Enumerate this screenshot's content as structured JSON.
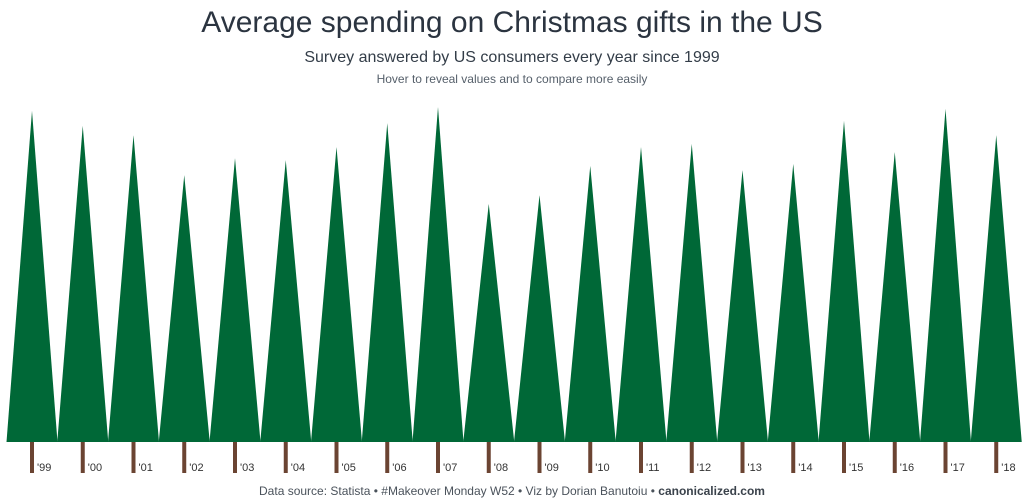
{
  "header": {
    "title": "Average spending on Christmas gifts in the US",
    "subtitle": "Survey answered by US consumers every year since 1999",
    "hint": "Hover to reveal values and to compare more easily"
  },
  "footer": {
    "text": "Data source: Statista • #Makeover Monday W52 • Viz by Dorian Banutoiu • ",
    "brand": "canonicalized.com"
  },
  "colors": {
    "tree": "#006837",
    "trunk": "#6b4432"
  },
  "chart_data": {
    "type": "bar",
    "mark": "triangle-tree",
    "title": "Average spending on Christmas gifts in the US",
    "categories": [
      "'99",
      "'00",
      "'01",
      "'02",
      "'03",
      "'04",
      "'05",
      "'06",
      "'07",
      "'08",
      "'09",
      "'10",
      "'11",
      "'12",
      "'13",
      "'14",
      "'15",
      "'16",
      "'17",
      "'18"
    ],
    "values": [
      861,
      822,
      798,
      694,
      738,
      733,
      767,
      829,
      871,
      619,
      642,
      718,
      767,
      775,
      707,
      723,
      835,
      754,
      866,
      798
    ],
    "unit": "USD (estimated, no axis shown)",
    "ylim": [
      0,
      900
    ],
    "grid": false,
    "legend": "none"
  }
}
